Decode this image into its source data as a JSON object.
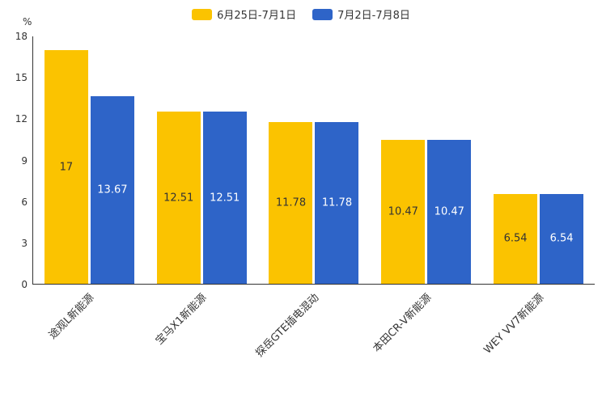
{
  "chart_data": {
    "type": "bar",
    "title": "",
    "ylabel": "%",
    "ylim": [
      0,
      18
    ],
    "yticks": [
      0,
      3,
      6,
      9,
      12,
      15,
      18
    ],
    "categories": [
      "途观L新能源",
      "宝马X1新能源",
      "探岳GTE插电混动",
      "本田CR-V新能源",
      "WEY VV7新能源"
    ],
    "series": [
      {
        "name": "6月25日-7月1日",
        "color": "#FBC300",
        "label_color": "#333333",
        "values": [
          17,
          12.51,
          11.78,
          10.47,
          6.54
        ]
      },
      {
        "name": "7月2日-7月8日",
        "color": "#2E64C8",
        "label_color": "#FFFFFF",
        "values": [
          13.67,
          12.51,
          11.78,
          10.47,
          6.54
        ]
      }
    ],
    "legend_position": "top",
    "grid": false
  }
}
